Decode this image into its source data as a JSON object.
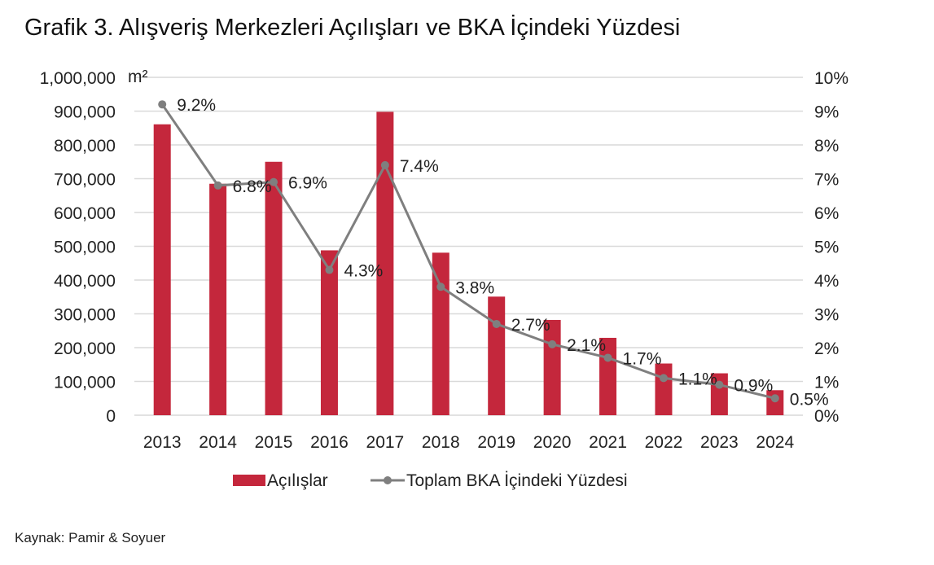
{
  "title": "Grafik 3. Alışveriş Merkezleri Açılışları ve BKA İçindeki Yüzdesi",
  "source": "Kaynak: Pamir & Soyuer",
  "chart_data": {
    "type": "bar+line",
    "title": "Grafik 3. Alışveriş Merkezleri Açılışları ve BKA İçindeki Yüzdesi",
    "categories": [
      "2013",
      "2014",
      "2015",
      "2016",
      "2017",
      "2018",
      "2019",
      "2020",
      "2021",
      "2022",
      "2023",
      "2024"
    ],
    "series": [
      {
        "name": "Açılışlar",
        "type": "bar",
        "axis": "left",
        "color": "#c4273c",
        "values": [
          861000,
          685000,
          750000,
          488000,
          898000,
          481000,
          351000,
          282000,
          229000,
          153000,
          124000,
          74000
        ]
      },
      {
        "name": "Toplam BKA İçindeki Yüzdesi",
        "type": "line",
        "axis": "right",
        "color": "#7f7f7f",
        "values": [
          9.2,
          6.8,
          6.9,
          4.3,
          7.4,
          3.8,
          2.7,
          2.1,
          1.7,
          1.1,
          0.9,
          0.5
        ],
        "labels": [
          "9.2%",
          "6.8%",
          "6.9%",
          "4.3%",
          "7.4%",
          "3.8%",
          "2.7%",
          "2.1%",
          "1.7%",
          "1.1%",
          "0.9%",
          "0.5%"
        ]
      }
    ],
    "ylabel": "m²",
    "ylim": [
      0,
      1000000
    ],
    "yticks": [
      "0",
      "100,000",
      "200,000",
      "300,000",
      "400,000",
      "500,000",
      "600,000",
      "700,000",
      "800,000",
      "900,000",
      "1,000,000"
    ],
    "y2lim": [
      0,
      10
    ],
    "y2ticks": [
      "0%",
      "1%",
      "2%",
      "3%",
      "4%",
      "5%",
      "6%",
      "7%",
      "8%",
      "9%",
      "10%"
    ],
    "grid": true,
    "legend_position": "bottom"
  }
}
